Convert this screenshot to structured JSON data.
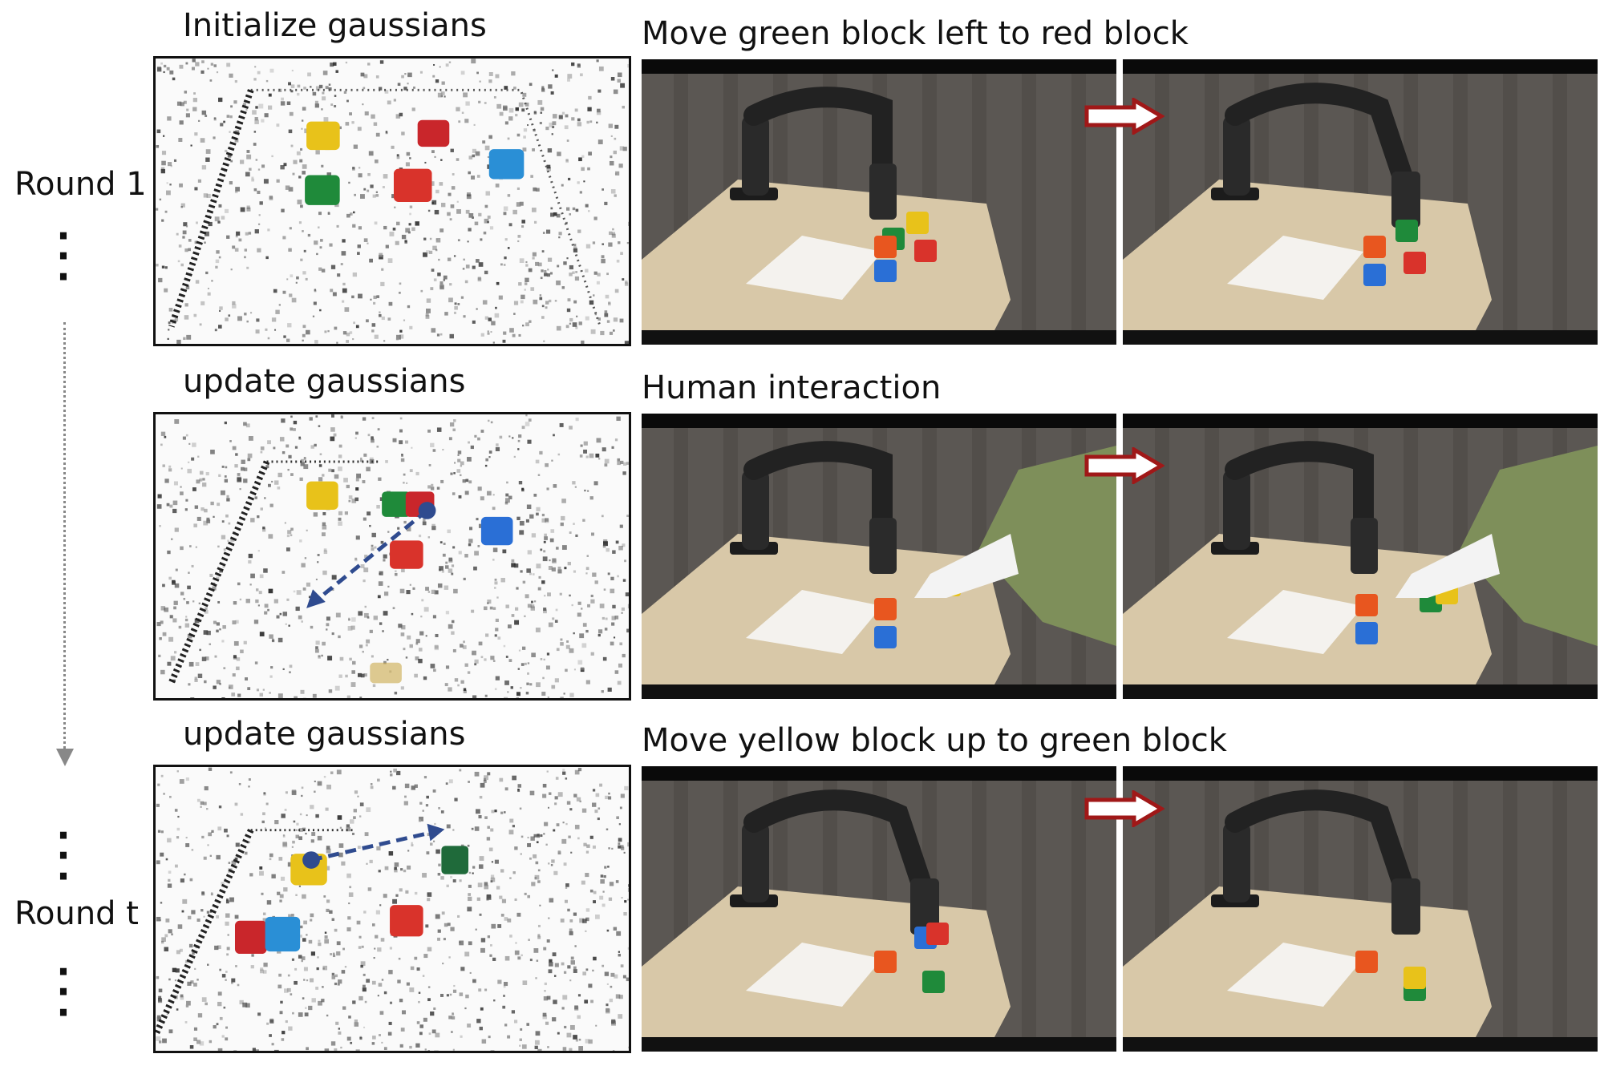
{
  "rounds": [
    {
      "label": "Round 1"
    },
    {
      "label": "Round t"
    }
  ],
  "rows": [
    {
      "gaussian_label": "Initialize gaussians",
      "task_label": "Move green block left to red block",
      "has_motion_arrow": false
    },
    {
      "gaussian_label": "update gaussians",
      "task_label": "Human interaction",
      "has_motion_arrow": true
    },
    {
      "gaussian_label": "update gaussians",
      "task_label": "Move yellow block up to green block",
      "has_motion_arrow": true
    }
  ],
  "colors": {
    "transition_arrow": "#a01818",
    "motion_arrow": "#2f4b8f",
    "block_red": "#d9332b",
    "block_green": "#1f8a3a",
    "block_blue": "#2a6fd6",
    "block_yellow": "#e8c21a",
    "block_orange": "#e8561f",
    "table": "#d8c8a8",
    "curtain": "#5b5753"
  }
}
